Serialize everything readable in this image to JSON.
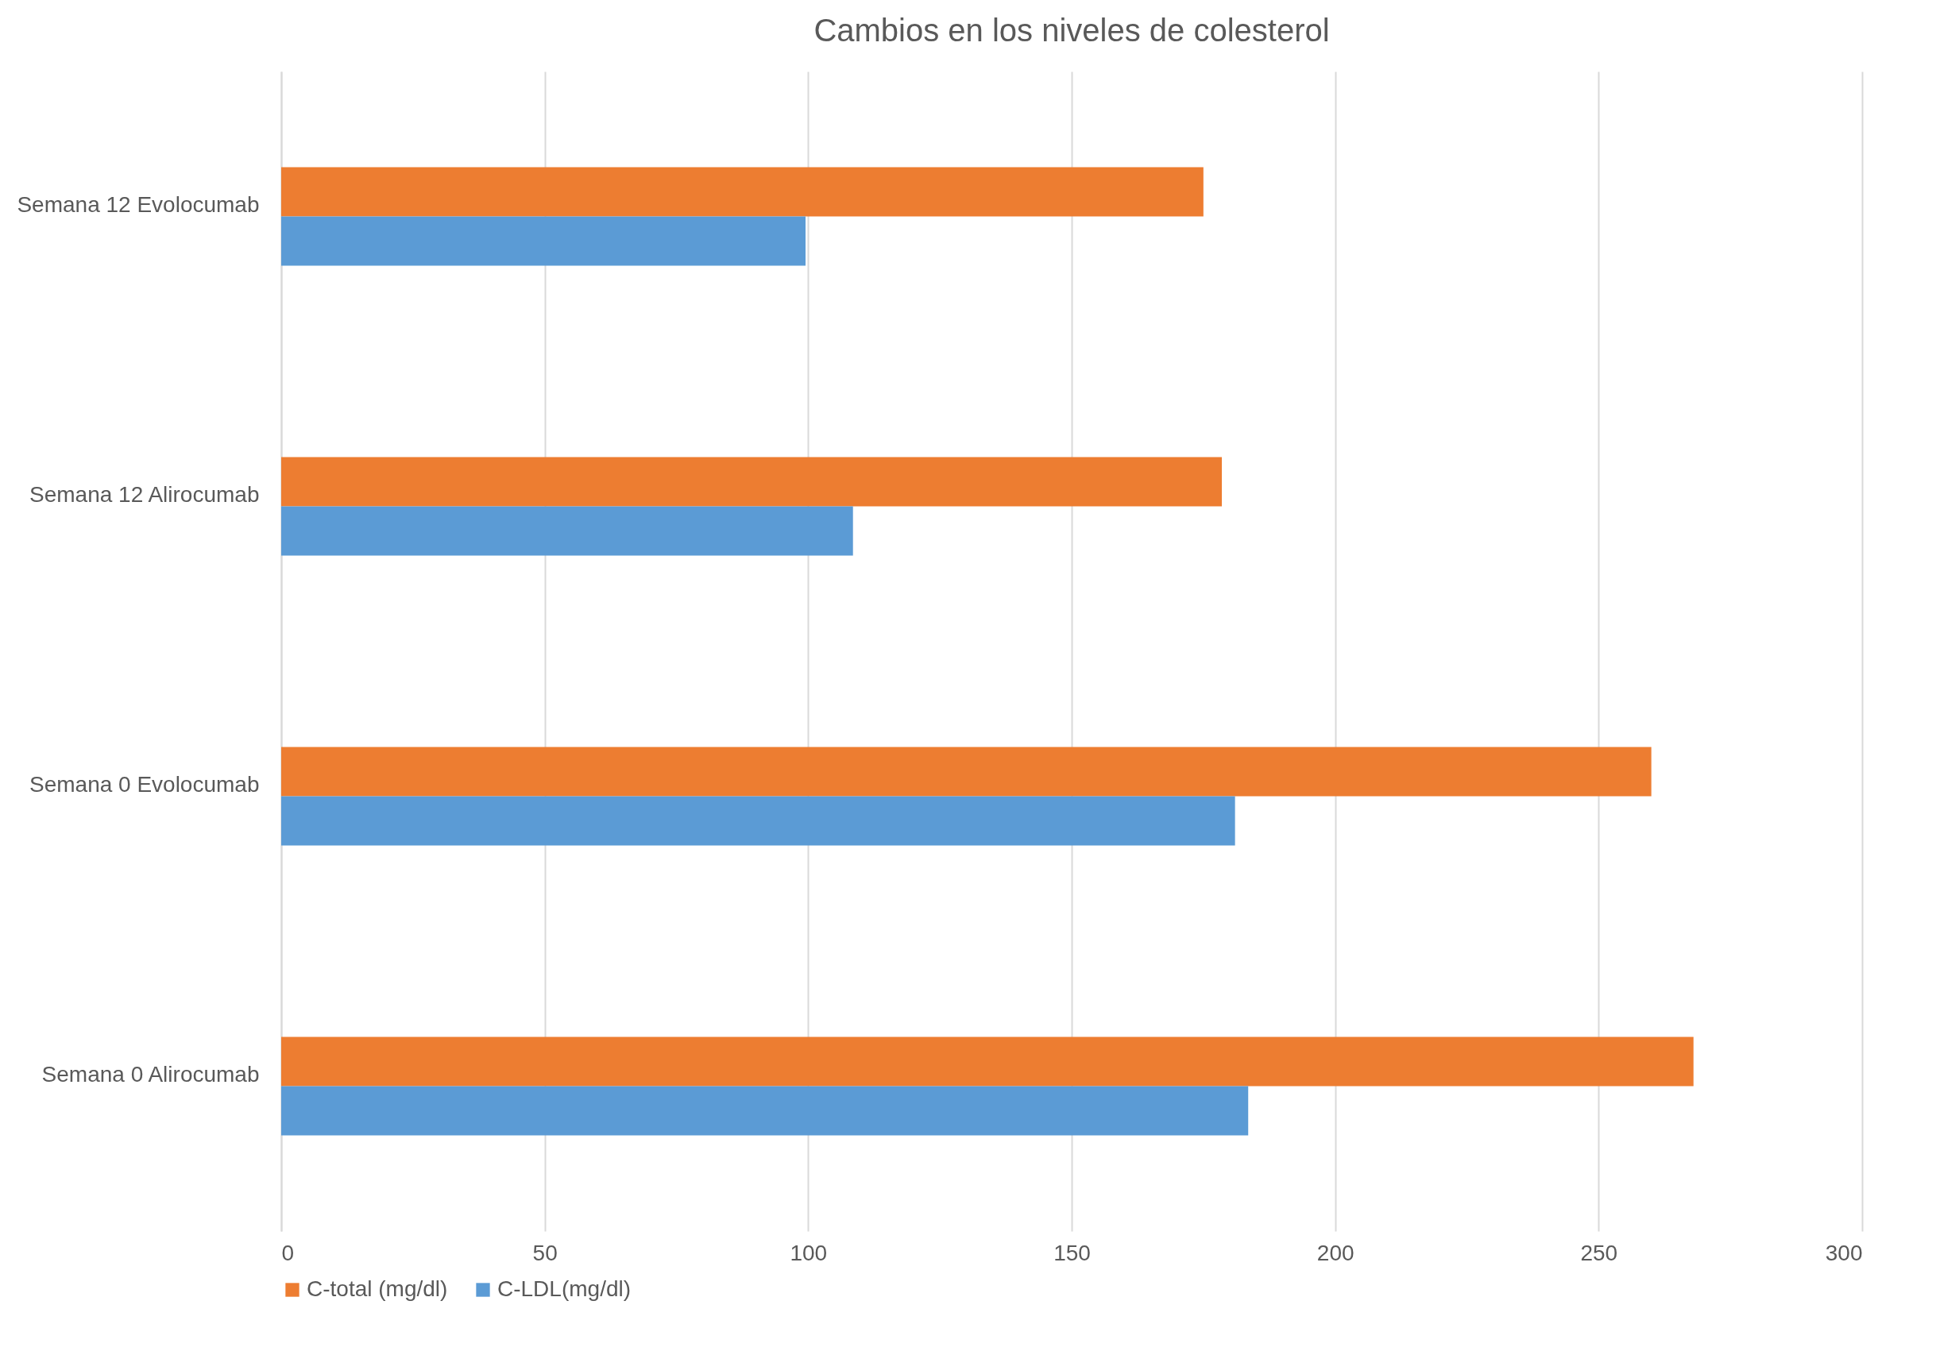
{
  "chart_data": {
    "type": "bar",
    "orientation": "horizontal",
    "title": "Cambios en los niveles de colesterol",
    "categories": [
      "Semana 12 Evolocumab",
      "Semana 12 Alirocumab",
      "Semana 0 Evolocumab",
      "Semana 0 Alirocumab"
    ],
    "series": [
      {
        "name": "C-total (mg/dl)",
        "color": "#ed7d31",
        "values": [
          175,
          178.5,
          260,
          268
        ]
      },
      {
        "name": "C-LDL(mg/dl)",
        "color": "#5b9bd5",
        "values": [
          99.5,
          108.5,
          181,
          183.5
        ]
      }
    ],
    "xlim": [
      0,
      300
    ],
    "xticks": [
      0,
      50,
      100,
      150,
      200,
      250,
      300
    ],
    "grid": "x",
    "legend": "bottom"
  }
}
